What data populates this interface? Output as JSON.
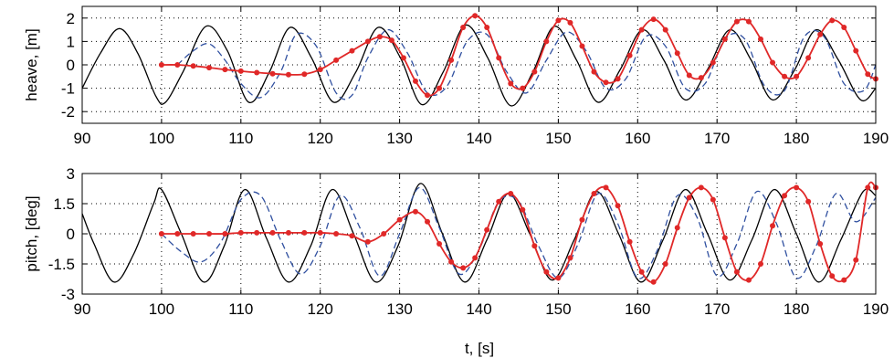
{
  "colors": {
    "measured": "#000000",
    "dashed": "#3050a0",
    "estimate": "#e02828",
    "grid": "#000000",
    "background": "#ffffff"
  },
  "xlabel": "t, [s]",
  "chart_data": [
    {
      "type": "line",
      "title": "",
      "xlabel": "",
      "ylabel": "heave, [m]",
      "xlim": [
        90,
        190
      ],
      "ylim": [
        -2.5,
        2.5
      ],
      "xticks": [
        90,
        100,
        110,
        120,
        130,
        140,
        150,
        160,
        170,
        180,
        190
      ],
      "yticks": [
        -2,
        -1,
        0,
        1,
        2
      ],
      "xtick_labels": [
        "90",
        "100",
        "110",
        "120",
        "130",
        "140",
        "150",
        "160",
        "170",
        "180",
        "190"
      ],
      "ytick_labels": [
        "-2",
        "-1",
        "0",
        "1",
        "2"
      ],
      "grid": true,
      "series": [
        {
          "style": "solid-black",
          "x": [
            90,
            92.3,
            94.7,
            97.0,
            99.3,
            100.5,
            102.7,
            105.6,
            108.3,
            111.0,
            113.6,
            116.2,
            118.9,
            121.7,
            124.5,
            127.3,
            130.1,
            132.8,
            135.5,
            138.3,
            141.1,
            144.0,
            146.8,
            149.5,
            152.3,
            155.0,
            157.8,
            160.6,
            163.3,
            166.0,
            168.8,
            171.6,
            174.3,
            177.0,
            179.8,
            182.5,
            185.3,
            188.1,
            190
          ],
          "y": [
            -1.0,
            0.5,
            1.55,
            0.5,
            -1.35,
            -1.6,
            -0.3,
            1.65,
            0.6,
            -1.6,
            -0.3,
            1.6,
            0.3,
            -1.6,
            -0.3,
            1.6,
            0.3,
            -1.7,
            -0.3,
            1.7,
            0.3,
            -1.75,
            -0.3,
            1.65,
            0.2,
            -1.6,
            -0.2,
            1.5,
            0.2,
            -1.5,
            -0.2,
            1.5,
            0.2,
            -1.5,
            -0.2,
            1.5,
            0.2,
            -1.5,
            -1.0
          ]
        },
        {
          "style": "dashed-blue",
          "x": [
            102,
            104,
            106,
            108,
            110,
            112.5,
            115,
            117,
            119.5,
            122,
            124,
            126,
            128.5,
            131,
            133.5,
            136,
            138.5,
            141,
            143.5,
            146,
            148.5,
            151,
            153.5,
            156,
            158.5,
            161,
            163.5,
            166,
            168.5,
            171,
            173.5,
            176,
            178.5,
            181,
            183.5,
            186,
            188.5,
            190
          ],
          "y": [
            0,
            0.6,
            0.9,
            0.2,
            -0.8,
            -1.4,
            -0.3,
            1.3,
            0.8,
            -1.2,
            -1.3,
            0.3,
            1.5,
            0.5,
            -1.2,
            -0.9,
            1.0,
            1.3,
            -0.3,
            -1.2,
            0.2,
            1.4,
            0.6,
            -1.0,
            -0.6,
            1.2,
            0.8,
            -1.0,
            -0.8,
            1.1,
            1.1,
            -0.9,
            -1.1,
            1.2,
            1.2,
            -0.8,
            -1.1,
            0.0
          ]
        },
        {
          "style": "red-markers",
          "x": [
            100,
            102,
            104,
            106,
            108,
            110,
            112,
            114,
            116,
            118,
            120,
            122,
            124,
            126,
            127.5,
            129,
            130.5,
            132,
            133.5,
            135,
            136.5,
            138,
            139.5,
            141,
            142.5,
            144,
            145.5,
            147,
            148.5,
            150,
            151.5,
            153,
            154.5,
            156,
            157.5,
            159,
            160.5,
            162,
            163.5,
            165,
            166.5,
            168,
            169.5,
            171,
            172.5,
            174,
            175.5,
            177,
            178.5,
            180,
            181.5,
            183,
            184.5,
            186,
            187.5,
            189,
            190
          ],
          "y": [
            0.0,
            0.0,
            -0.05,
            -0.12,
            -0.2,
            -0.27,
            -0.33,
            -0.38,
            -0.42,
            -0.4,
            -0.2,
            0.2,
            0.6,
            1.0,
            1.2,
            1.05,
            0.3,
            -0.7,
            -1.3,
            -1.0,
            0.2,
            1.6,
            2.1,
            1.6,
            0.3,
            -0.8,
            -1.0,
            -0.3,
            1.0,
            1.9,
            1.8,
            0.8,
            -0.3,
            -0.75,
            -0.6,
            0.4,
            1.5,
            1.95,
            1.5,
            0.5,
            -0.45,
            -0.55,
            0.1,
            1.1,
            1.85,
            1.85,
            1.1,
            0.1,
            -0.5,
            -0.5,
            0.3,
            1.3,
            1.9,
            1.6,
            0.6,
            -0.4,
            -0.6
          ]
        }
      ]
    },
    {
      "type": "line",
      "title": "",
      "xlabel": "t, [s]",
      "ylabel": "pitch, [deg]",
      "xlim": [
        90,
        190
      ],
      "ylim": [
        -3,
        3
      ],
      "xticks": [
        90,
        100,
        110,
        120,
        130,
        140,
        150,
        160,
        170,
        180,
        190
      ],
      "yticks": [
        -3,
        -1.5,
        0,
        1.5,
        3
      ],
      "xtick_labels": [
        "90",
        "100",
        "110",
        "120",
        "130",
        "140",
        "150",
        "160",
        "170",
        "180",
        "190"
      ],
      "ytick_labels": [
        "-3",
        "-1.5",
        "0",
        "1.5",
        "3"
      ],
      "grid": true,
      "series": [
        {
          "style": "solid-black",
          "x": [
            90,
            91.5,
            94,
            96.5,
            99,
            100,
            102.5,
            105.3,
            107.9,
            110.5,
            113.2,
            116,
            118.8,
            121.5,
            124.2,
            127,
            129.8,
            132.6,
            135.4,
            138.2,
            141,
            143.7,
            146.4,
            149.2,
            152,
            154.8,
            157.6,
            160.4,
            163.2,
            166,
            168.8,
            171.6,
            174.4,
            177.2,
            180,
            182.8,
            185.6,
            188.4,
            190
          ],
          "y": [
            1.0,
            -0.5,
            -2.4,
            -1.0,
            1.5,
            2.2,
            0.0,
            -2.4,
            -0.6,
            2.2,
            -0.2,
            -2.4,
            -0.6,
            2.2,
            0.0,
            -2.4,
            -0.6,
            2.5,
            0.0,
            -2.4,
            -0.3,
            2.0,
            0.0,
            -2.3,
            -0.3,
            2.1,
            0.0,
            -2.4,
            -0.3,
            2.2,
            0.0,
            -2.3,
            -0.3,
            2.2,
            0.0,
            -2.4,
            -0.3,
            2.1,
            1.9
          ]
        },
        {
          "style": "dashed-blue",
          "x": [
            100,
            102.5,
            105,
            107.5,
            110,
            112.5,
            115,
            117.5,
            120,
            122.5,
            125,
            127.5,
            130,
            132.5,
            135,
            137.5,
            140,
            142.5,
            145,
            147.5,
            150,
            152.5,
            155,
            157.5,
            160,
            162.5,
            165,
            167.5,
            170,
            172.5,
            175,
            177.5,
            180,
            182.5,
            185,
            187.5,
            190
          ],
          "y": [
            0.0,
            -0.9,
            -1.4,
            -0.4,
            1.7,
            1.9,
            -0.3,
            -2.0,
            -0.6,
            1.9,
            0.3,
            -2.1,
            0.0,
            2.3,
            0.3,
            -2.0,
            -0.8,
            1.6,
            1.6,
            -0.6,
            -2.2,
            -0.5,
            2.0,
            0.5,
            -2.2,
            -0.8,
            1.9,
            0.8,
            -2.1,
            -0.5,
            2.1,
            0.5,
            -2.2,
            -0.6,
            2.0,
            0.6,
            1.8
          ]
        },
        {
          "style": "red-markers",
          "x": [
            100,
            102,
            104,
            106,
            108,
            110,
            112,
            114,
            116,
            118,
            120,
            122,
            124,
            126,
            128,
            130,
            132,
            133.5,
            135,
            136.5,
            138,
            139.5,
            141,
            142.5,
            144,
            145.5,
            147,
            148.5,
            150,
            151.5,
            153,
            154.5,
            156,
            157.5,
            159,
            160.5,
            162,
            163.5,
            165,
            166.5,
            168,
            169.5,
            171,
            172.5,
            174,
            175.5,
            177,
            178.5,
            180,
            181.5,
            183,
            184.5,
            186,
            187.5,
            189,
            190
          ],
          "y": [
            0.0,
            0.0,
            0.0,
            0.0,
            0.0,
            0.05,
            0.05,
            0.05,
            0.05,
            0.05,
            0.05,
            0.0,
            -0.1,
            -0.4,
            0.0,
            0.7,
            1.1,
            0.6,
            -0.5,
            -1.4,
            -1.7,
            -1.2,
            0.2,
            1.6,
            2.0,
            1.2,
            -0.6,
            -1.9,
            -2.2,
            -1.2,
            0.7,
            2.0,
            2.3,
            1.4,
            -0.4,
            -1.9,
            -2.4,
            -1.5,
            0.3,
            1.8,
            2.3,
            1.7,
            -0.2,
            -1.9,
            -2.3,
            -1.5,
            0.4,
            1.9,
            2.3,
            1.6,
            -0.5,
            -2.1,
            -2.3,
            -1.3,
            2.3,
            2.3
          ]
        }
      ]
    }
  ]
}
